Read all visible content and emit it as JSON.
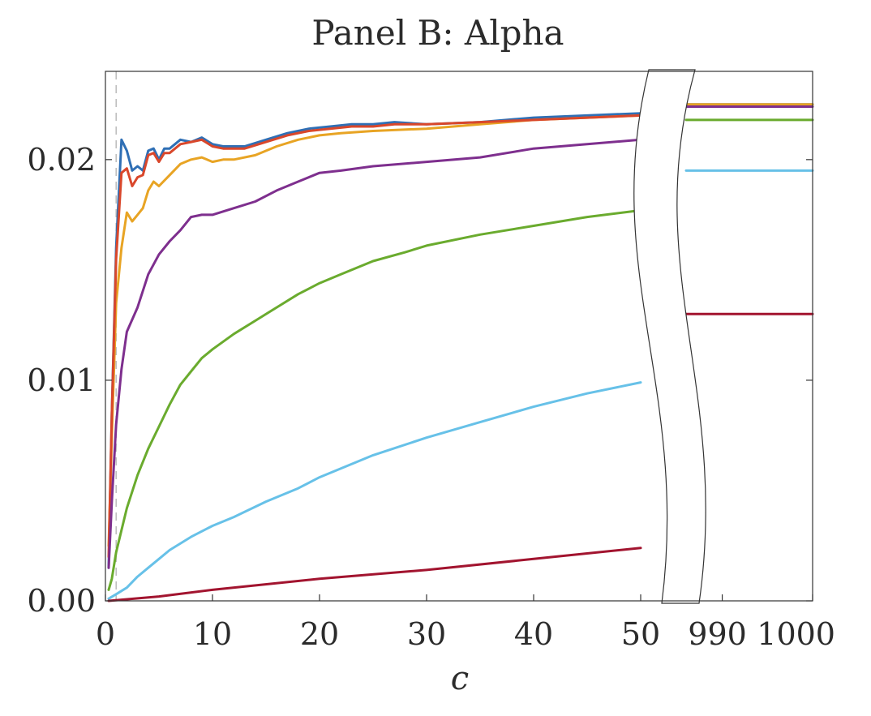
{
  "chart_data": {
    "type": "line",
    "title": "Panel B: Alpha",
    "xlabel": "c",
    "ylabel": "",
    "ylim": [
      0,
      0.024
    ],
    "xlim_left": [
      0,
      50
    ],
    "xlim_right": [
      986,
      1000
    ],
    "x_axis_break": "between 50 and 990",
    "yticks": [
      "0.00",
      "0.01",
      "0.02"
    ],
    "xticks_left": [
      "0",
      "10",
      "20",
      "30",
      "40",
      "50"
    ],
    "xticks_right": [
      "990",
      "1000"
    ],
    "reference_line_x": 1,
    "grid": false,
    "legend": "none",
    "series": [
      {
        "color": "#2f6fb5",
        "points": [
          [
            0.3,
            0.0015
          ],
          [
            0.6,
            0.0085
          ],
          [
            1,
            0.016
          ],
          [
            1.5,
            0.0209
          ],
          [
            2,
            0.0204
          ],
          [
            2.5,
            0.0195
          ],
          [
            3,
            0.0197
          ],
          [
            3.5,
            0.0195
          ],
          [
            4,
            0.0204
          ],
          [
            4.5,
            0.0205
          ],
          [
            5,
            0.02
          ],
          [
            5.5,
            0.0205
          ],
          [
            6,
            0.0205
          ],
          [
            7,
            0.0209
          ],
          [
            8,
            0.0208
          ],
          [
            9,
            0.021
          ],
          [
            10,
            0.0207
          ],
          [
            11,
            0.0206
          ],
          [
            12,
            0.0206
          ],
          [
            13,
            0.0206
          ],
          [
            15,
            0.0209
          ],
          [
            17,
            0.0212
          ],
          [
            19,
            0.0214
          ],
          [
            21,
            0.0215
          ],
          [
            23,
            0.0216
          ],
          [
            25,
            0.0216
          ],
          [
            27,
            0.0217
          ],
          [
            30,
            0.0216
          ],
          [
            35,
            0.0217
          ],
          [
            40,
            0.0219
          ],
          [
            45,
            0.022
          ],
          [
            50,
            0.0221
          ]
        ],
        "right": [
          [
            986,
            0.0225
          ],
          [
            1000,
            0.0225
          ]
        ]
      },
      {
        "color": "#e8a424",
        "points": [
          [
            0.3,
            0.0025
          ],
          [
            0.6,
            0.0075
          ],
          [
            1,
            0.0135
          ],
          [
            1.5,
            0.016
          ],
          [
            2,
            0.0176
          ],
          [
            2.5,
            0.0172
          ],
          [
            3,
            0.0175
          ],
          [
            3.5,
            0.0178
          ],
          [
            4,
            0.0186
          ],
          [
            4.5,
            0.019
          ],
          [
            5,
            0.0188
          ],
          [
            6,
            0.0193
          ],
          [
            7,
            0.0198
          ],
          [
            8,
            0.02
          ],
          [
            9,
            0.0201
          ],
          [
            10,
            0.0199
          ],
          [
            11,
            0.02
          ],
          [
            12,
            0.02
          ],
          [
            14,
            0.0202
          ],
          [
            16,
            0.0206
          ],
          [
            18,
            0.0209
          ],
          [
            20,
            0.0211
          ],
          [
            22,
            0.0212
          ],
          [
            25,
            0.0213
          ],
          [
            30,
            0.0214
          ],
          [
            35,
            0.0216
          ],
          [
            40,
            0.0218
          ],
          [
            45,
            0.0219
          ],
          [
            50,
            0.022
          ]
        ],
        "right": [
          [
            986,
            0.0225
          ],
          [
            1000,
            0.0225
          ]
        ]
      },
      {
        "color": "#d9472b",
        "points": [
          [
            0.3,
            0.002
          ],
          [
            0.6,
            0.0085
          ],
          [
            1,
            0.0155
          ],
          [
            1.5,
            0.0194
          ],
          [
            2,
            0.0196
          ],
          [
            2.5,
            0.0188
          ],
          [
            3,
            0.0192
          ],
          [
            3.5,
            0.0193
          ],
          [
            4,
            0.0202
          ],
          [
            4.5,
            0.0203
          ],
          [
            5,
            0.0199
          ],
          [
            5.5,
            0.0203
          ],
          [
            6,
            0.0203
          ],
          [
            7,
            0.0207
          ],
          [
            8,
            0.0208
          ],
          [
            9,
            0.0209
          ],
          [
            10,
            0.0206
          ],
          [
            11,
            0.0205
          ],
          [
            12,
            0.0205
          ],
          [
            13,
            0.0205
          ],
          [
            15,
            0.0208
          ],
          [
            17,
            0.0211
          ],
          [
            19,
            0.0213
          ],
          [
            21,
            0.0214
          ],
          [
            23,
            0.0215
          ],
          [
            25,
            0.0215
          ],
          [
            27,
            0.0216
          ],
          [
            30,
            0.0216
          ],
          [
            35,
            0.0217
          ],
          [
            40,
            0.0218
          ],
          [
            45,
            0.0219
          ],
          [
            50,
            0.022
          ]
        ],
        "right": []
      },
      {
        "color": "#7e2f8e",
        "points": [
          [
            0.3,
            0.0015
          ],
          [
            0.6,
            0.0045
          ],
          [
            1,
            0.008
          ],
          [
            1.5,
            0.0105
          ],
          [
            2,
            0.0122
          ],
          [
            3,
            0.0133
          ],
          [
            4,
            0.0148
          ],
          [
            5,
            0.0157
          ],
          [
            6,
            0.0163
          ],
          [
            7,
            0.0168
          ],
          [
            8,
            0.0174
          ],
          [
            9,
            0.0175
          ],
          [
            10,
            0.0175
          ],
          [
            12,
            0.0178
          ],
          [
            14,
            0.0181
          ],
          [
            16,
            0.0186
          ],
          [
            18,
            0.019
          ],
          [
            20,
            0.0194
          ],
          [
            22,
            0.0195
          ],
          [
            25,
            0.0197
          ],
          [
            30,
            0.0199
          ],
          [
            35,
            0.0201
          ],
          [
            40,
            0.0205
          ],
          [
            45,
            0.0207
          ],
          [
            50,
            0.0209
          ]
        ],
        "right": [
          [
            986,
            0.0224
          ],
          [
            1000,
            0.0224
          ]
        ]
      },
      {
        "color": "#6aab2e",
        "points": [
          [
            0.3,
            0.0005
          ],
          [
            0.6,
            0.001
          ],
          [
            1,
            0.0022
          ],
          [
            1.5,
            0.0032
          ],
          [
            2,
            0.0042
          ],
          [
            3,
            0.0057
          ],
          [
            4,
            0.0069
          ],
          [
            5,
            0.0079
          ],
          [
            6,
            0.0089
          ],
          [
            7,
            0.0098
          ],
          [
            8,
            0.0104
          ],
          [
            9,
            0.011
          ],
          [
            10,
            0.0114
          ],
          [
            12,
            0.0121
          ],
          [
            14,
            0.0127
          ],
          [
            16,
            0.0133
          ],
          [
            18,
            0.0139
          ],
          [
            20,
            0.0144
          ],
          [
            22,
            0.0148
          ],
          [
            25,
            0.0154
          ],
          [
            28,
            0.0158
          ],
          [
            30,
            0.0161
          ],
          [
            35,
            0.0166
          ],
          [
            40,
            0.017
          ],
          [
            45,
            0.0174
          ],
          [
            50,
            0.0177
          ]
        ],
        "right": [
          [
            986,
            0.0218
          ],
          [
            1000,
            0.0218
          ]
        ]
      },
      {
        "color": "#67c1e8",
        "points": [
          [
            0.3,
            0.0001
          ],
          [
            1,
            0.0003
          ],
          [
            2,
            0.0006
          ],
          [
            3,
            0.0011
          ],
          [
            4,
            0.0015
          ],
          [
            5,
            0.0019
          ],
          [
            6,
            0.0023
          ],
          [
            8,
            0.0029
          ],
          [
            10,
            0.0034
          ],
          [
            12,
            0.0038
          ],
          [
            15,
            0.0045
          ],
          [
            18,
            0.0051
          ],
          [
            20,
            0.0056
          ],
          [
            25,
            0.0066
          ],
          [
            30,
            0.0074
          ],
          [
            35,
            0.0081
          ],
          [
            40,
            0.0088
          ],
          [
            45,
            0.0094
          ],
          [
            50,
            0.0099
          ]
        ],
        "right": [
          [
            986,
            0.0195
          ],
          [
            1000,
            0.0195
          ]
        ]
      },
      {
        "color": "#a2142f",
        "points": [
          [
            0.3,
            0.0
          ],
          [
            5,
            0.0002
          ],
          [
            10,
            0.0005
          ],
          [
            20,
            0.001
          ],
          [
            30,
            0.0014
          ],
          [
            40,
            0.0019
          ],
          [
            50,
            0.0024
          ]
        ],
        "right": [
          [
            986,
            0.013
          ],
          [
            1000,
            0.013
          ]
        ]
      }
    ]
  }
}
